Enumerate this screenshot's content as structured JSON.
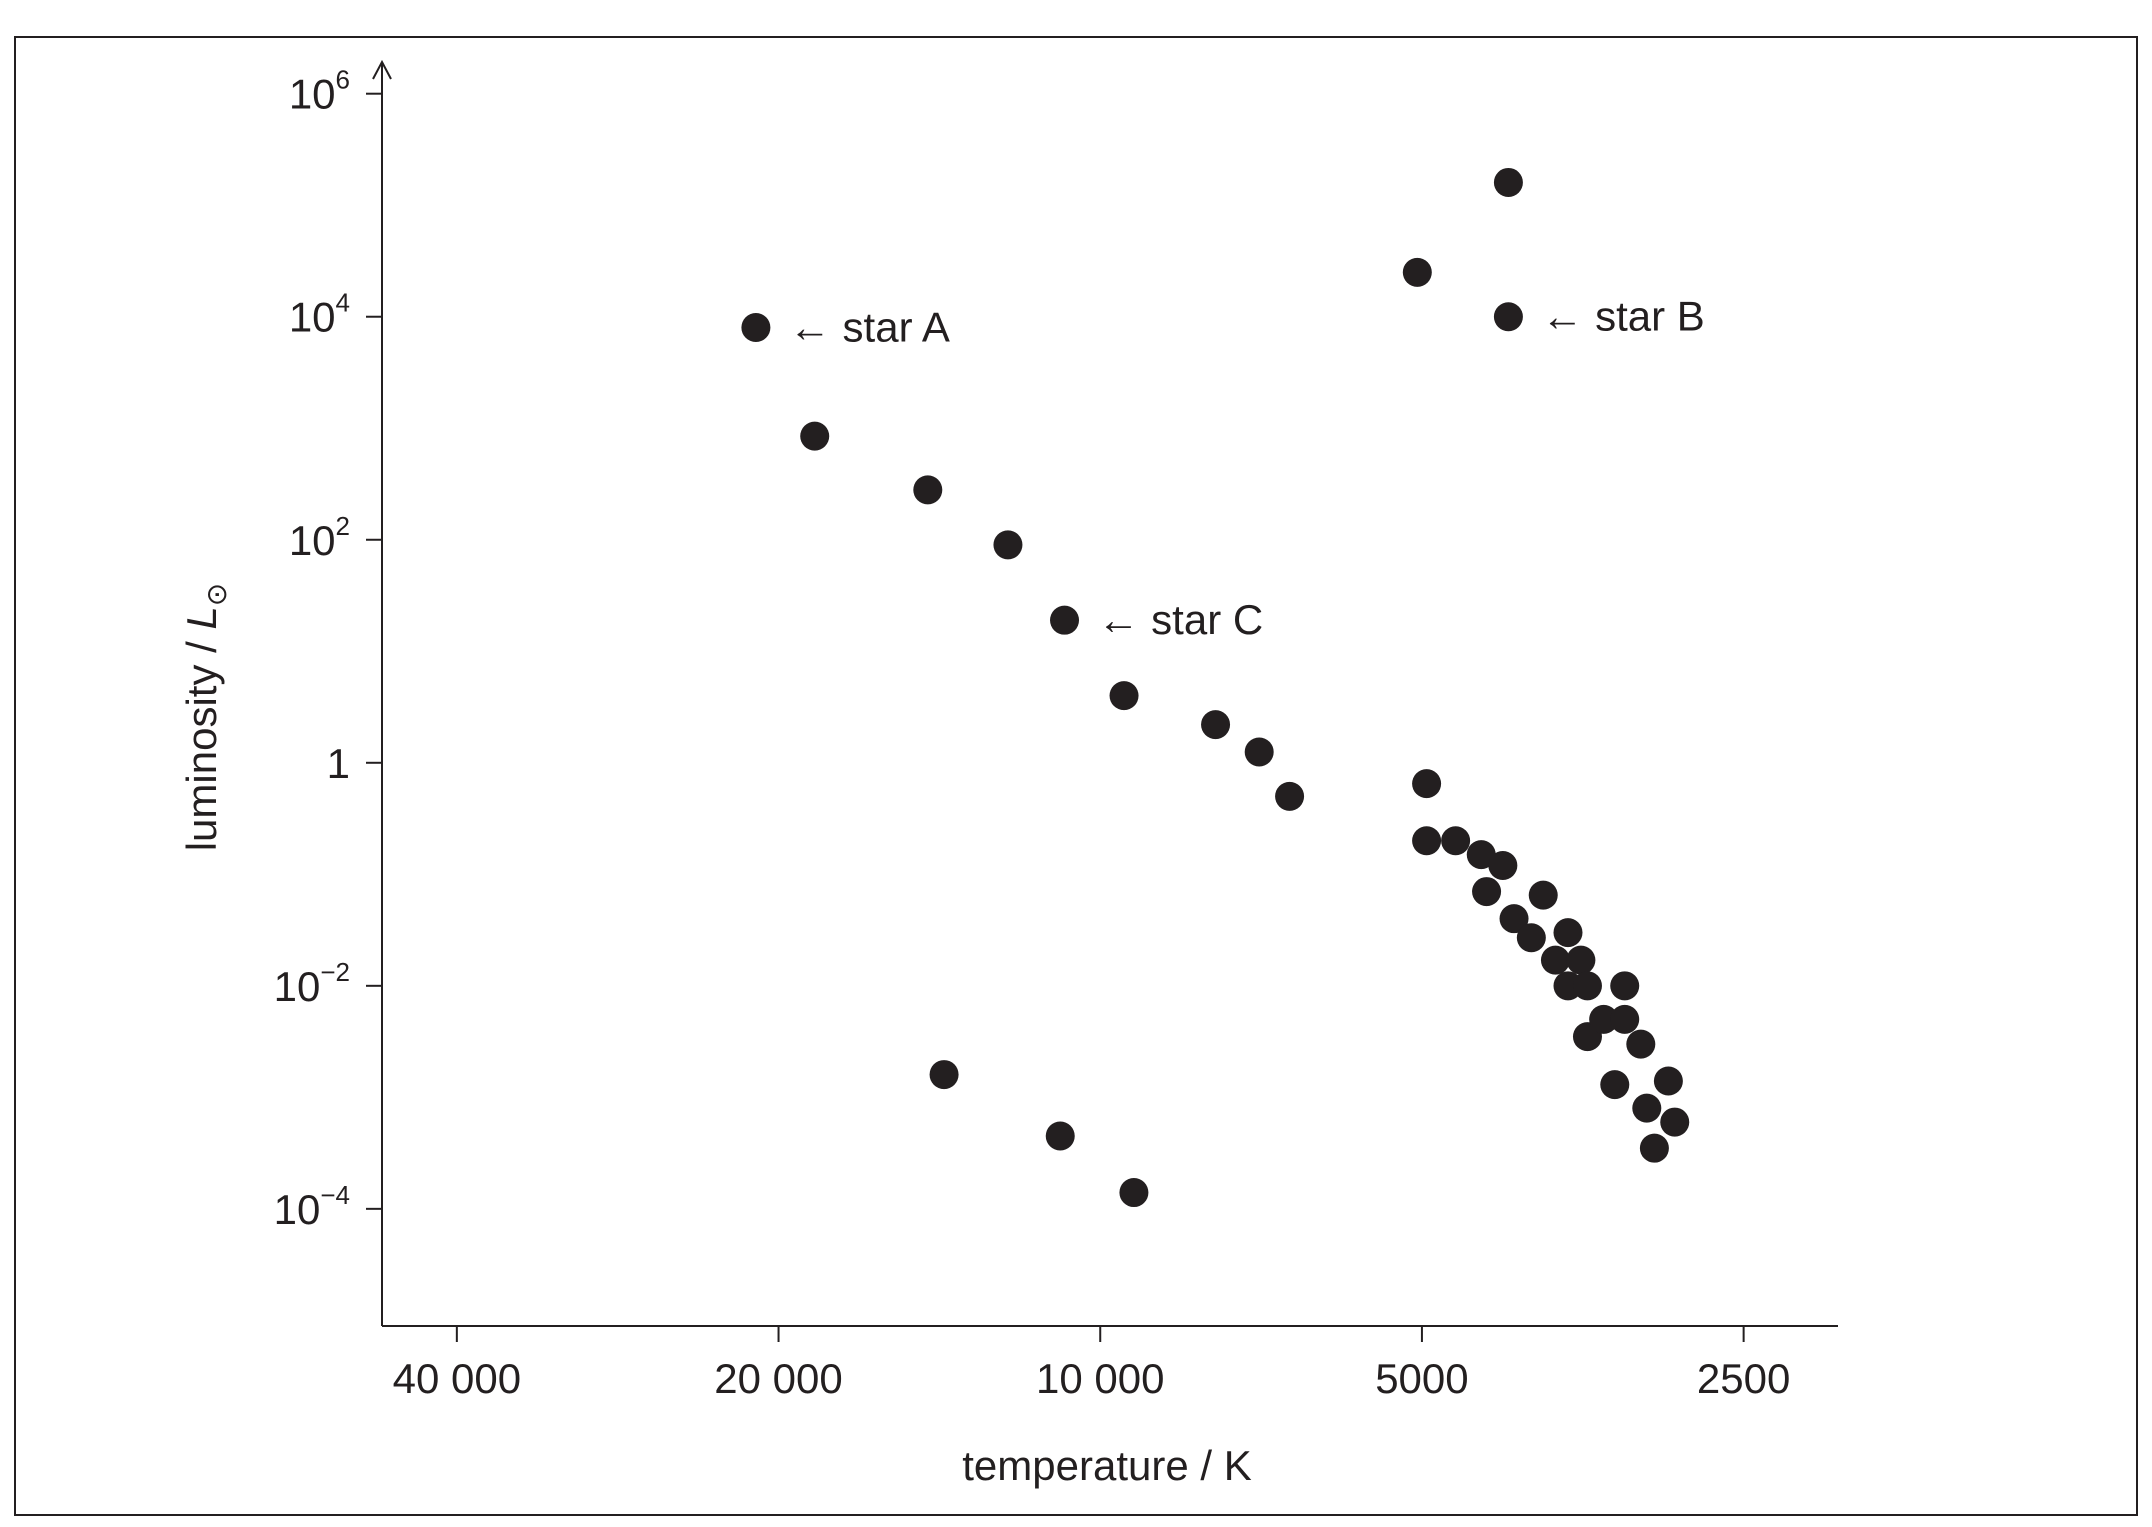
{
  "chart_data": {
    "type": "scatter",
    "title": "",
    "xlabel": "temperature / K",
    "ylabel_prefix": "luminosity / ",
    "ylabel_symbol": "L",
    "ylabel_subscript": "⊙",
    "x_scale": "log",
    "x_reversed": true,
    "y_scale": "log",
    "x_ticks": [
      {
        "value": 40000,
        "label": "40 000"
      },
      {
        "value": 20000,
        "label": "20 000"
      },
      {
        "value": 10000,
        "label": "10 000"
      },
      {
        "value": 5000,
        "label": "5000"
      },
      {
        "value": 2500,
        "label": "2500"
      }
    ],
    "y_ticks": [
      {
        "value": 1000000,
        "base": "10",
        "exp": "6"
      },
      {
        "value": 10000,
        "base": "10",
        "exp": "4"
      },
      {
        "value": 100,
        "base": "10",
        "exp": "2"
      },
      {
        "value": 1,
        "base": "1",
        "exp": ""
      },
      {
        "value": 0.01,
        "base": "10",
        "exp": "−2"
      },
      {
        "value": 0.0001,
        "base": "10",
        "exp": "−4"
      }
    ],
    "xlim": [
      47000,
      2040
    ],
    "ylim": [
      8.9e-06,
      1700000
    ],
    "marker_color": "#231f20",
    "points": [
      {
        "x": 21000,
        "y": 8000,
        "label": "← star A"
      },
      {
        "x": 18500,
        "y": 850
      },
      {
        "x": 14500,
        "y": 280
      },
      {
        "x": 12200,
        "y": 90
      },
      {
        "x": 10800,
        "y": 19,
        "label": "← star C"
      },
      {
        "x": 9500,
        "y": 4
      },
      {
        "x": 7800,
        "y": 2.2
      },
      {
        "x": 7100,
        "y": 1.25
      },
      {
        "x": 6650,
        "y": 0.5
      },
      {
        "x": 4950,
        "y": 0.65
      },
      {
        "x": 4950,
        "y": 0.2
      },
      {
        "x": 4650,
        "y": 0.2
      },
      {
        "x": 4400,
        "y": 0.15
      },
      {
        "x": 4350,
        "y": 0.07
      },
      {
        "x": 4200,
        "y": 0.12
      },
      {
        "x": 4100,
        "y": 0.04
      },
      {
        "x": 3950,
        "y": 0.027
      },
      {
        "x": 3850,
        "y": 0.065
      },
      {
        "x": 3750,
        "y": 0.017
      },
      {
        "x": 3650,
        "y": 0.01
      },
      {
        "x": 3650,
        "y": 0.03
      },
      {
        "x": 3550,
        "y": 0.017
      },
      {
        "x": 3500,
        "y": 0.0035
      },
      {
        "x": 3500,
        "y": 0.01
      },
      {
        "x": 3380,
        "y": 0.005
      },
      {
        "x": 3300,
        "y": 0.0013
      },
      {
        "x": 3230,
        "y": 0.01
      },
      {
        "x": 3230,
        "y": 0.005
      },
      {
        "x": 3120,
        "y": 0.003
      },
      {
        "x": 3080,
        "y": 0.0008
      },
      {
        "x": 3030,
        "y": 0.00035
      },
      {
        "x": 2940,
        "y": 0.0014
      },
      {
        "x": 2900,
        "y": 0.0006
      },
      {
        "x": 5050,
        "y": 25000
      },
      {
        "x": 4150,
        "y": 160000
      },
      {
        "x": 4150,
        "y": 10000,
        "label": "← star B"
      },
      {
        "x": 14000,
        "y": 0.0016
      },
      {
        "x": 10900,
        "y": 0.00045
      },
      {
        "x": 9300,
        "y": 0.00014
      }
    ]
  }
}
